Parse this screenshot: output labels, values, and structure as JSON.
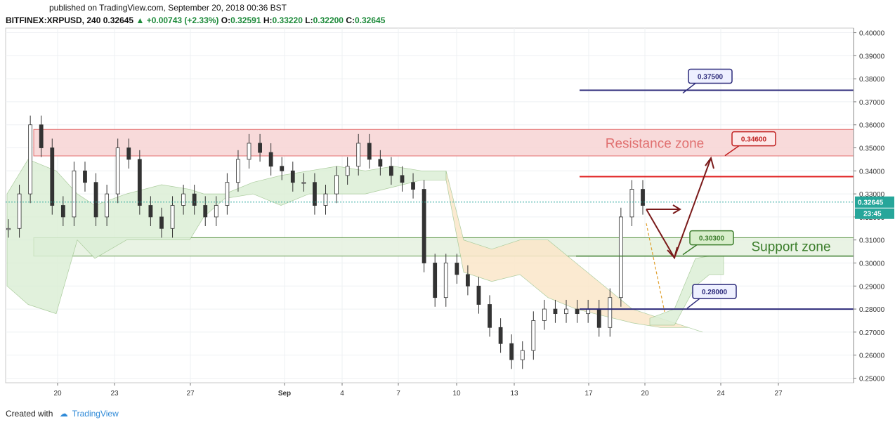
{
  "header": {
    "published": "published on TradingView.com, September 20, 2018 00:36 BST",
    "symbol": "BITFINEX:XRPUSD, 240",
    "last": "0.32645",
    "change": "+0.00743 (+2.33%)",
    "open_label": "O:",
    "open": "0.32591",
    "high_label": "H:",
    "high": "0.33220",
    "low_label": "L:",
    "low": "0.32200",
    "close_label": "C:",
    "close": "0.32645"
  },
  "footer": {
    "created_with": "Created with",
    "brand": "TradingView"
  },
  "colors": {
    "bull": "#26a69a",
    "bear": "#ef5350",
    "candle_body_dark": "#333333",
    "resistance_fill": "#f8d7d7",
    "resistance_border": "#e06060",
    "support_fill": "#e6f2e0",
    "support_border": "#4a8a30",
    "level_navy": "#2c2a7a",
    "level_red": "#e02020",
    "level_green": "#3c7d2c",
    "cloud_bull": "#dcefd6",
    "cloud_bear": "#fbe7c9",
    "arrow": "#7a1a1a"
  },
  "chart_data": {
    "type": "line",
    "title": "BITFINEX:XRPUSD, 240",
    "ylim": [
      0.248,
      0.402
    ],
    "y_ticks": [
      "0.40000",
      "0.39000",
      "0.38000",
      "0.37000",
      "0.36000",
      "0.35000",
      "0.34000",
      "0.33000",
      "0.32000",
      "0.31000",
      "0.30000",
      "0.29000",
      "0.28000",
      "0.27000",
      "0.26000",
      "0.25000"
    ],
    "x_ticks": [
      "20",
      "23",
      "27",
      "Sep",
      "4",
      "7",
      "10",
      "13",
      "17",
      "20",
      "24",
      "27"
    ],
    "current_price": "0.32645",
    "countdown": "23:45",
    "zones": [
      {
        "name": "Resistance zone",
        "y1": 0.3465,
        "y2": 0.358
      },
      {
        "name": "Support zone",
        "y1": 0.303,
        "y2": 0.311
      }
    ],
    "levels": [
      {
        "label": "0.37500",
        "y": 0.375
      },
      {
        "label": "0.34600",
        "y": 0.346
      },
      {
        "label": "0.30300",
        "y": 0.303
      },
      {
        "label": "0.28000",
        "y": 0.28
      }
    ],
    "resistance_line": 0.3375,
    "series": [
      {
        "values": [
          0.315,
          0.33,
          0.36,
          0.35,
          0.325,
          0.32,
          0.34,
          0.335,
          0.32,
          0.33,
          0.35,
          0.345,
          0.325,
          0.32,
          0.315,
          0.325,
          0.33,
          0.325,
          0.32,
          0.325,
          0.335,
          0.345,
          0.352,
          0.348,
          0.342,
          0.34,
          0.335,
          0.335,
          0.325,
          0.33,
          0.338,
          0.342,
          0.352,
          0.345,
          0.342,
          0.338,
          0.335,
          0.332,
          0.3,
          0.285,
          0.3,
          0.295,
          0.29,
          0.282,
          0.272,
          0.265,
          0.258,
          0.262,
          0.275,
          0.28,
          0.278,
          0.28,
          0.278,
          0.28,
          0.272,
          0.285,
          0.32,
          0.332,
          0.325
        ]
      }
    ]
  }
}
